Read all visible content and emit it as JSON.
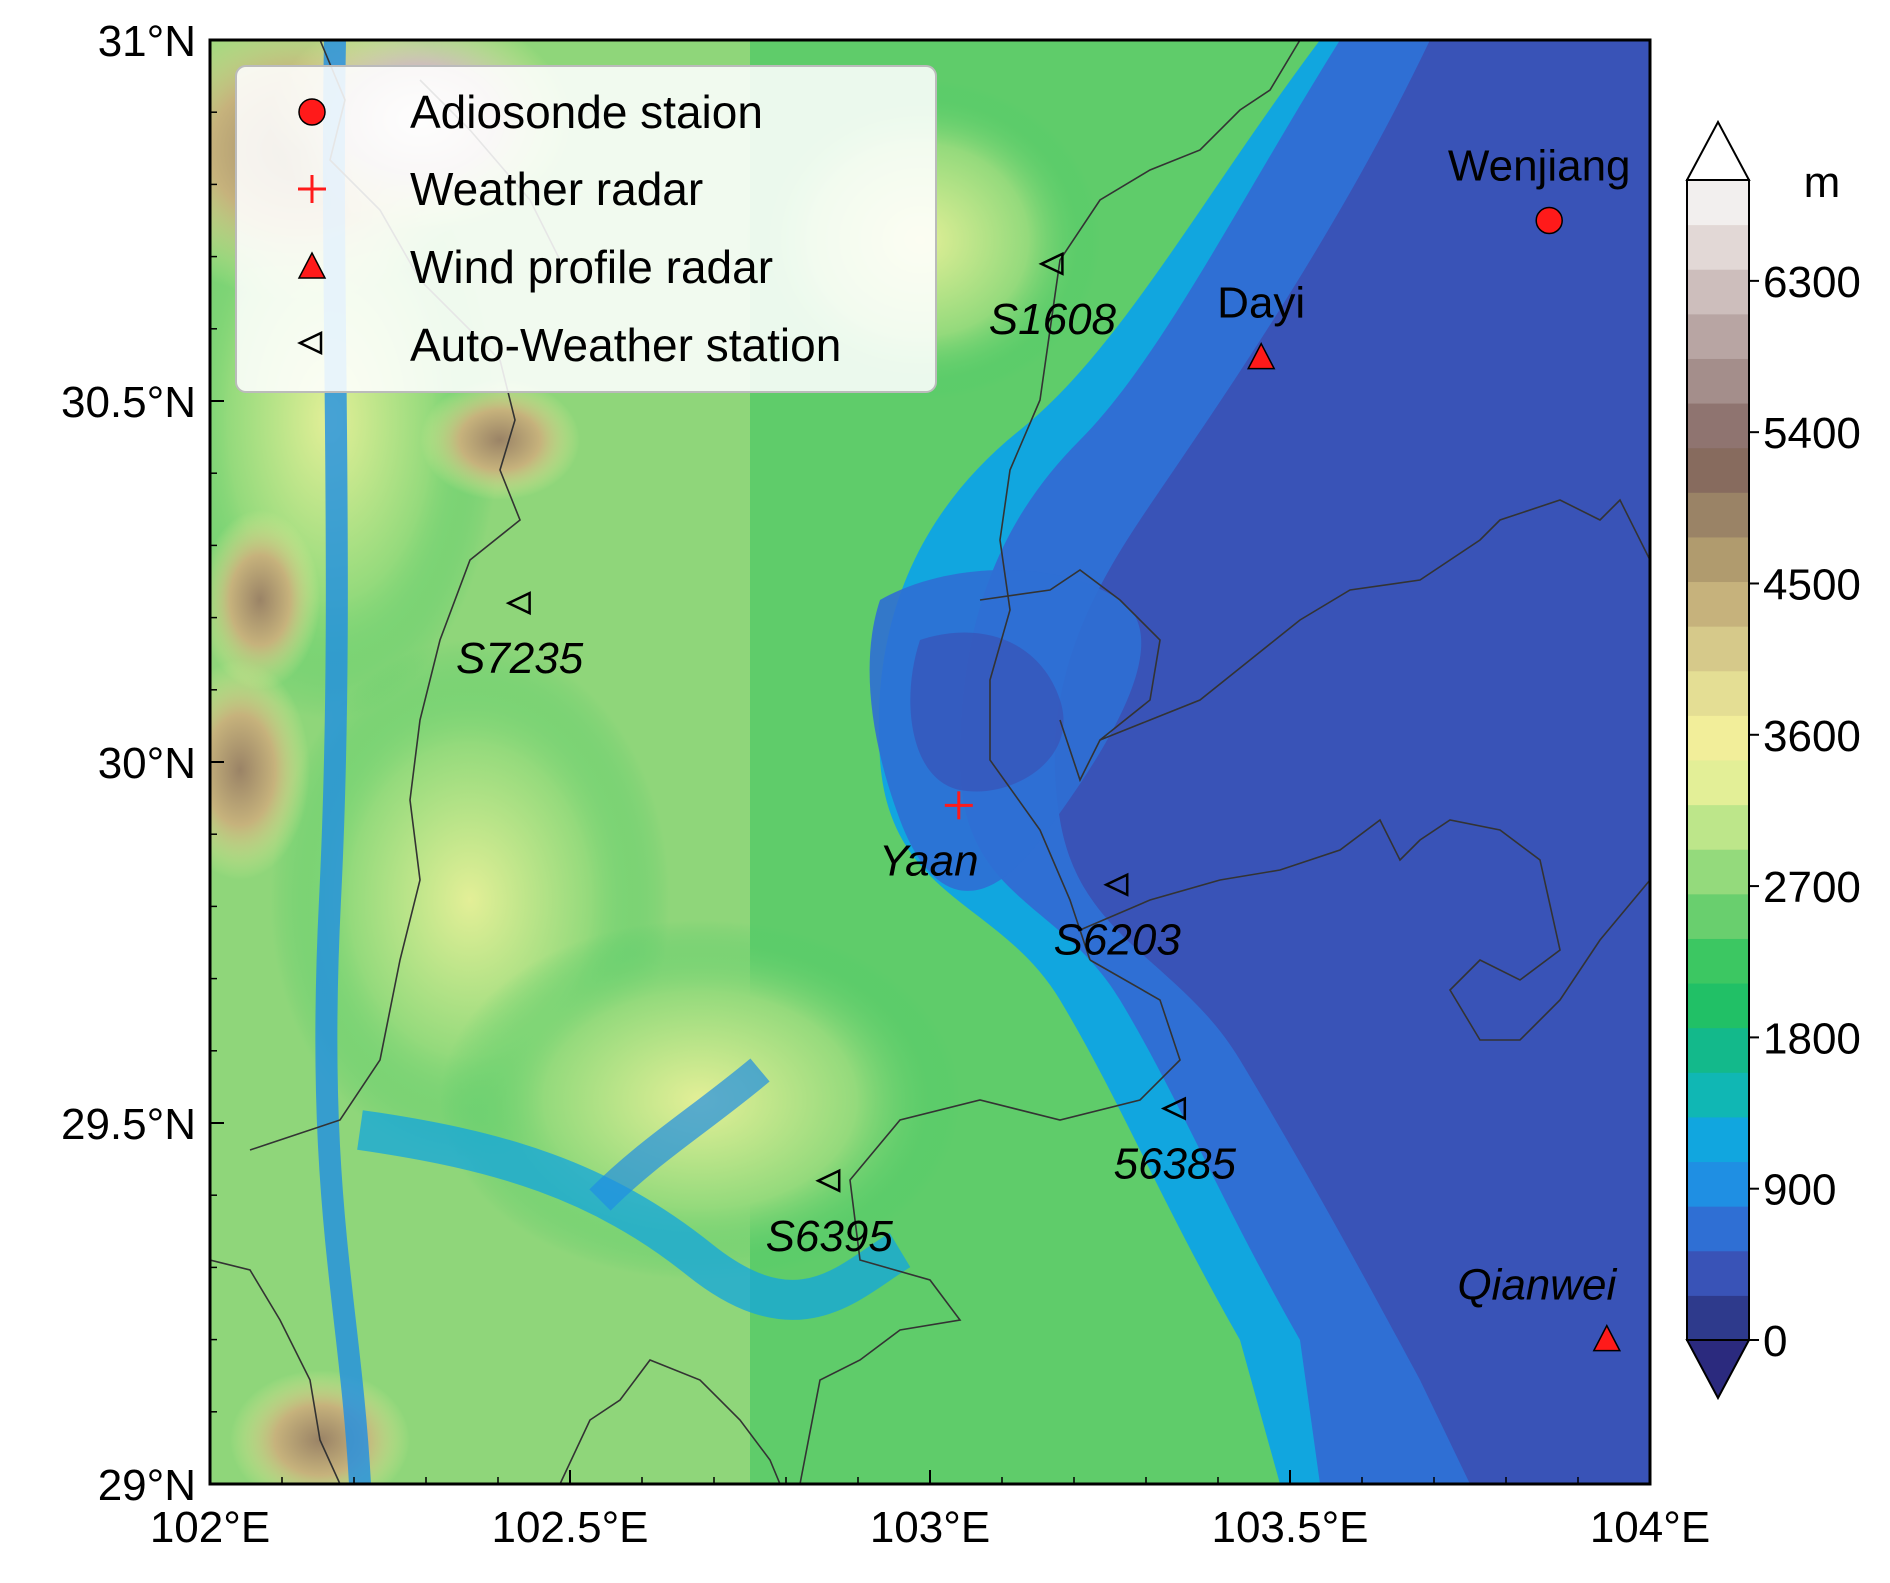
{
  "map": {
    "x_ticks": [
      "102°E",
      "102.5°E",
      "103°E",
      "103.5°E",
      "104°E"
    ],
    "y_ticks": [
      "29°N",
      "29.5°N",
      "30°N",
      "30.5°N",
      "31°N"
    ],
    "x_tick_values": [
      102.0,
      102.5,
      103.0,
      103.5,
      104.0
    ],
    "y_tick_values": [
      29.0,
      29.5,
      30.0,
      30.5,
      31.0
    ],
    "lon_range": [
      102.0,
      104.0
    ],
    "lat_range": [
      29.0,
      31.0
    ]
  },
  "legend": {
    "items": [
      {
        "label": "Adiosonde staion",
        "symbol": "circle-icon"
      },
      {
        "label": "Weather radar",
        "symbol": "plus-icon"
      },
      {
        "label": "Wind profile radar",
        "symbol": "triangle-icon"
      },
      {
        "label": "Auto-Weather station",
        "symbol": "left-triangle-icon"
      }
    ]
  },
  "sites": [
    {
      "id": "wenjiang",
      "label": "Wenjiang",
      "type": "radiosonde",
      "lon": 103.86,
      "lat": 30.75,
      "italic": false
    },
    {
      "id": "dayi",
      "label": "Dayi",
      "type": "wind-profile",
      "lon": 103.46,
      "lat": 30.56,
      "italic": false
    },
    {
      "id": "qianwei",
      "label": "Qianwei",
      "type": "wind-profile",
      "lon": 103.94,
      "lat": 29.2,
      "italic": true
    },
    {
      "id": "yaan",
      "label": "Yaan",
      "type": "weather-radar",
      "lon": 103.04,
      "lat": 29.94,
      "italic": true
    },
    {
      "id": "s1608",
      "label": "S1608",
      "type": "auto-weather",
      "lon": 103.17,
      "lat": 30.69,
      "italic": true
    },
    {
      "id": "s7235",
      "label": "S7235",
      "type": "auto-weather",
      "lon": 102.43,
      "lat": 30.22,
      "italic": true
    },
    {
      "id": "s6203",
      "label": "S6203",
      "type": "auto-weather",
      "lon": 103.26,
      "lat": 29.83,
      "italic": true
    },
    {
      "id": "56385",
      "label": "56385",
      "type": "auto-weather",
      "lon": 103.34,
      "lat": 29.52,
      "italic": true
    },
    {
      "id": "s6395",
      "label": "S6395",
      "type": "auto-weather",
      "lon": 102.86,
      "lat": 29.42,
      "italic": true
    }
  ],
  "colorbar": {
    "unit": "m",
    "ticks": [
      "0",
      "900",
      "1800",
      "2700",
      "3600",
      "4500",
      "5400",
      "6300"
    ],
    "range": [
      0,
      6900
    ],
    "bins": [
      "#2e3a8c",
      "#3953b7",
      "#2f6fd4",
      "#1f8fe3",
      "#11a6df",
      "#10b7b4",
      "#13b98b",
      "#21c066",
      "#3cc762",
      "#69cf6e",
      "#94da7c",
      "#bde68a",
      "#e3ef97",
      "#f2ee9a",
      "#e4de94",
      "#d6c98a",
      "#c6b27c",
      "#b09b6e",
      "#9a8366",
      "#876b5e",
      "#8f7470",
      "#a48e8b",
      "#b8a5a3",
      "#cdbebc",
      "#e2d8d6",
      "#f2efee"
    ]
  },
  "colors": {
    "marker_red": "#ff1a1a",
    "marker_outline": "#000000",
    "border_line": "#333333"
  }
}
